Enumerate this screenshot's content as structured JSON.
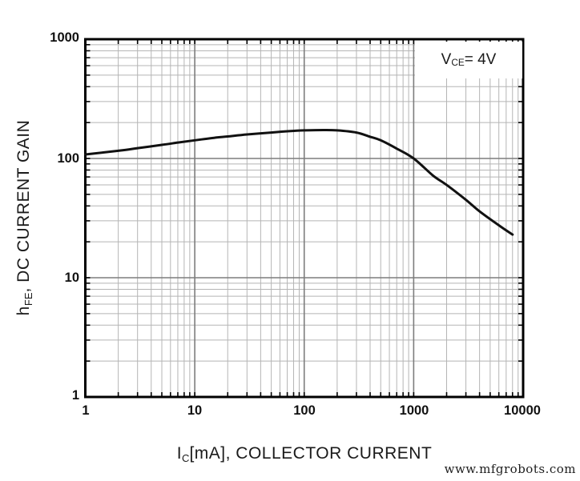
{
  "figure": {
    "background": "#ffffff",
    "watermark": "www.mfgrobots.com"
  },
  "annotation": {
    "prefix": "V",
    "sub": "CE",
    "suffix": " = 4V"
  },
  "axes": {
    "y_title_prefix": "h",
    "y_title_sub": "FE",
    "y_title_suffix": ", DC CURRENT GAIN",
    "x_title_prefix": "I",
    "x_title_sub": "C",
    "x_title_suffix": "[mA], COLLECTOR CURRENT"
  },
  "chart_data": {
    "type": "line",
    "title": "",
    "xlabel": "IC[mA], COLLECTOR CURRENT",
    "ylabel": "hFE, DC CURRENT GAIN",
    "annotation": "VCE = 4V",
    "x_scale": "log",
    "y_scale": "log",
    "xlim": [
      1,
      10000
    ],
    "ylim": [
      1,
      1000
    ],
    "x_ticks": [
      1,
      10,
      100,
      1000,
      10000
    ],
    "x_tick_labels": [
      "1",
      "10",
      "100",
      "1000",
      "10000"
    ],
    "y_ticks": [
      1,
      10,
      100,
      1000
    ],
    "y_tick_labels": [
      "1",
      "10",
      "100",
      "1000"
    ],
    "grid": "log major+minor, on",
    "legend": "none",
    "series": [
      {
        "name": "hFE vs IC at VCE = 4V",
        "x": [
          1,
          2,
          3,
          5,
          7,
          10,
          15,
          20,
          30,
          50,
          70,
          100,
          150,
          200,
          300,
          400,
          500,
          700,
          1000,
          1500,
          2000,
          3000,
          4000,
          6000,
          8000
        ],
        "y": [
          108,
          116,
          122,
          130,
          136,
          142,
          149,
          153,
          159,
          165,
          169,
          172,
          173,
          172,
          165,
          152,
          142,
          121,
          100,
          72,
          60,
          45,
          36,
          27.5,
          23
        ]
      }
    ],
    "colors": {
      "curve": "#111111",
      "grid_minor": "#b5b5b5",
      "grid_major": "#7d7d7d",
      "border": "#000000",
      "tick": "#000000"
    }
  }
}
